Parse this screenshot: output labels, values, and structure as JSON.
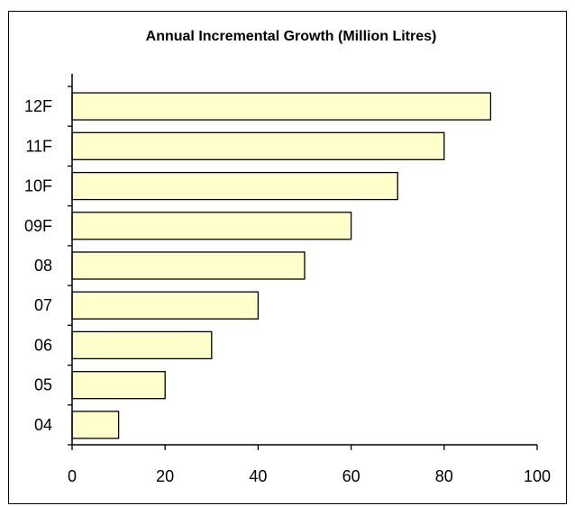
{
  "chart_data": {
    "type": "bar",
    "orientation": "horizontal",
    "title": "Annual Incremental Growth (Million Litres)",
    "xlabel": "",
    "ylabel": "",
    "categories": [
      "04",
      "05",
      "06",
      "07",
      "08",
      "09F",
      "10F",
      "11F",
      "12F"
    ],
    "values": [
      10,
      20,
      30,
      40,
      50,
      60,
      70,
      80,
      90
    ],
    "xlim": [
      0,
      100
    ],
    "x_ticks": [
      0,
      20,
      40,
      60,
      80,
      100
    ],
    "grid": false,
    "legend": "none",
    "colors": {
      "bar_fill": "#ffffcc",
      "bar_stroke": "#000000",
      "axis": "#000000",
      "frame": "#000000"
    }
  }
}
